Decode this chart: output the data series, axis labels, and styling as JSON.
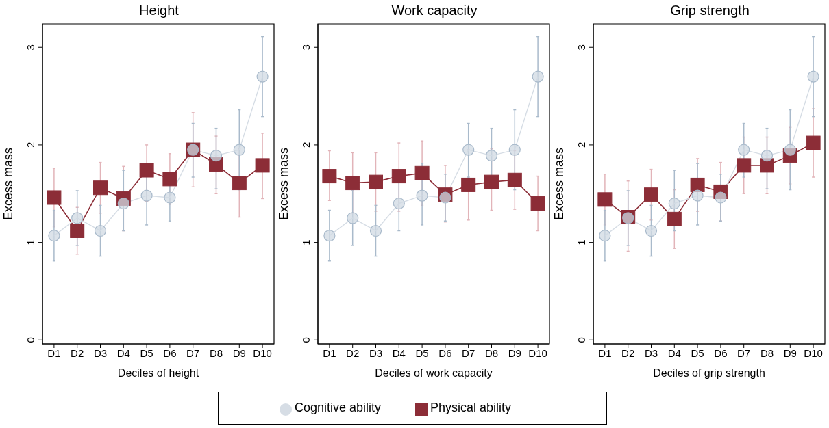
{
  "chart_data": [
    {
      "type": "line",
      "title": "Height",
      "xlabel": "Deciles of height",
      "ylabel": "Excess mass",
      "categories": [
        "D1",
        "D2",
        "D3",
        "D4",
        "D5",
        "D6",
        "D7",
        "D8",
        "D9",
        "D10"
      ],
      "ylim": [
        -0.04,
        3.24
      ],
      "yticks": [
        0,
        1,
        2,
        3
      ],
      "grid": false,
      "legend": "bottom",
      "series": [
        {
          "name": "Physical ability",
          "color": "#8c2d37",
          "marker": "square",
          "values": [
            1.46,
            1.12,
            1.56,
            1.45,
            1.74,
            1.65,
            1.95,
            1.8,
            1.61,
            1.79
          ],
          "errors": [
            [
              1.16,
              1.76
            ],
            [
              0.88,
              1.36
            ],
            [
              1.3,
              1.82
            ],
            [
              1.12,
              1.78
            ],
            [
              1.42,
              2.0
            ],
            [
              1.39,
              1.91
            ],
            [
              1.57,
              2.33
            ],
            [
              1.5,
              2.09
            ],
            [
              1.26,
              1.96
            ],
            [
              1.45,
              2.12
            ]
          ]
        },
        {
          "name": "Cognitive ability",
          "color": "#a9bacb",
          "marker": "circle",
          "values": [
            1.07,
            1.25,
            1.12,
            1.4,
            1.48,
            1.46,
            1.95,
            1.89,
            1.95,
            2.7
          ],
          "errors": [
            [
              0.81,
              1.33
            ],
            [
              0.97,
              1.53
            ],
            [
              0.86,
              1.38
            ],
            [
              1.12,
              1.74
            ],
            [
              1.18,
              1.81
            ],
            [
              1.22,
              1.7
            ],
            [
              1.67,
              2.22
            ],
            [
              1.55,
              2.17
            ],
            [
              1.54,
              2.36
            ],
            [
              2.29,
              3.11
            ]
          ]
        }
      ]
    },
    {
      "type": "line",
      "title": "Work capacity",
      "xlabel": "Deciles of work capacity",
      "ylabel": "Excess mass",
      "categories": [
        "D1",
        "D2",
        "D3",
        "D4",
        "D5",
        "D6",
        "D7",
        "D8",
        "D9",
        "D10"
      ],
      "ylim": [
        -0.04,
        3.24
      ],
      "yticks": [
        0,
        1,
        2,
        3
      ],
      "grid": false,
      "series": [
        {
          "color": "#8c2d37",
          "marker": "square",
          "values": [
            1.68,
            1.61,
            1.62,
            1.68,
            1.71,
            1.49,
            1.59,
            1.62,
            1.64,
            1.4
          ],
          "errors": [
            [
              1.43,
              1.94
            ],
            [
              1.3,
              1.92
            ],
            [
              1.32,
              1.92
            ],
            [
              1.32,
              2.02
            ],
            [
              1.38,
              2.04
            ],
            [
              1.21,
              1.79
            ],
            [
              1.23,
              1.95
            ],
            [
              1.33,
              1.96
            ],
            [
              1.34,
              1.94
            ],
            [
              1.12,
              1.68
            ]
          ]
        },
        {
          "color": "#a9bacb",
          "marker": "circle",
          "values": [
            1.07,
            1.25,
            1.12,
            1.4,
            1.48,
            1.46,
            1.95,
            1.89,
            1.95,
            2.7
          ],
          "errors": [
            [
              0.81,
              1.33
            ],
            [
              0.97,
              1.53
            ],
            [
              0.86,
              1.38
            ],
            [
              1.12,
              1.74
            ],
            [
              1.18,
              1.81
            ],
            [
              1.22,
              1.7
            ],
            [
              1.67,
              2.22
            ],
            [
              1.55,
              2.17
            ],
            [
              1.54,
              2.36
            ],
            [
              2.29,
              3.11
            ]
          ]
        }
      ]
    },
    {
      "type": "line",
      "title": "Grip strength",
      "xlabel": "Deciles of grip strength",
      "ylabel": "Excess mass",
      "categories": [
        "D1",
        "D2",
        "D3",
        "D4",
        "D5",
        "D6",
        "D7",
        "D8",
        "D9",
        "D10"
      ],
      "ylim": [
        -0.04,
        3.24
      ],
      "yticks": [
        0,
        1,
        2,
        3
      ],
      "grid": false,
      "series": [
        {
          "color": "#8c2d37",
          "marker": "square",
          "values": [
            1.44,
            1.26,
            1.49,
            1.24,
            1.59,
            1.52,
            1.79,
            1.79,
            1.89,
            2.02
          ],
          "errors": [
            [
              1.18,
              1.7
            ],
            [
              0.91,
              1.63
            ],
            [
              1.23,
              1.75
            ],
            [
              0.94,
              1.54
            ],
            [
              1.32,
              1.86
            ],
            [
              1.22,
              1.82
            ],
            [
              1.5,
              2.08
            ],
            [
              1.5,
              2.08
            ],
            [
              1.6,
              2.18
            ],
            [
              1.67,
              2.37
            ]
          ]
        },
        {
          "color": "#a9bacb",
          "marker": "circle",
          "values": [
            1.07,
            1.25,
            1.12,
            1.4,
            1.48,
            1.46,
            1.95,
            1.89,
            1.95,
            2.7
          ],
          "errors": [
            [
              0.81,
              1.33
            ],
            [
              0.97,
              1.53
            ],
            [
              0.86,
              1.38
            ],
            [
              1.12,
              1.74
            ],
            [
              1.18,
              1.81
            ],
            [
              1.22,
              1.7
            ],
            [
              1.67,
              2.22
            ],
            [
              1.55,
              2.17
            ],
            [
              1.54,
              2.36
            ],
            [
              2.29,
              3.11
            ]
          ]
        }
      ]
    }
  ]
}
